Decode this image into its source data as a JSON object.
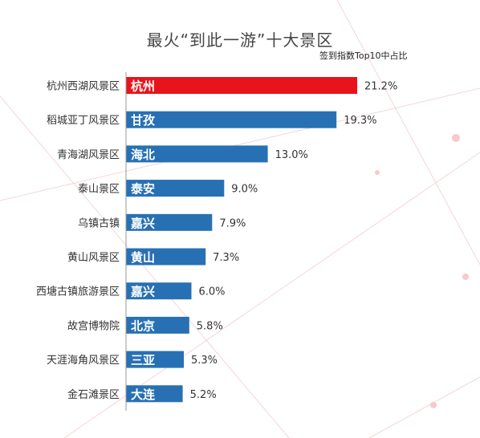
{
  "title": "最火“到此一游”十大景区",
  "subtitle": "签到指数Top10中占比",
  "colors": {
    "highlight": "#e8141b",
    "bar": "#2870b4",
    "axis": "#999999"
  },
  "chart_data": {
    "type": "bar",
    "orientation": "horizontal",
    "title": "最火“到此一游”十大景区",
    "subtitle": "签到指数Top10中占比",
    "categories": [
      "杭州西湖风景区",
      "稻城亚丁风景区",
      "青海湖风景区",
      "泰山景区",
      "乌镇古镇",
      "黄山风景区",
      "西塘古镇旅游景区",
      "故宫博物院",
      "天涯海角风景区",
      "金石滩景区"
    ],
    "bar_labels": [
      "杭州",
      "甘孜",
      "海北",
      "泰安",
      "嘉兴",
      "黄山",
      "嘉兴",
      "北京",
      "三亚",
      "大连"
    ],
    "values": [
      21.2,
      19.3,
      13.0,
      9.0,
      7.9,
      7.3,
      6.0,
      5.8,
      5.3,
      5.2
    ],
    "value_labels": [
      "21.2%",
      "19.3%",
      "13.0%",
      "9.0%",
      "7.9%",
      "7.3%",
      "6.0%",
      "5.8%",
      "5.3%",
      "5.2%"
    ],
    "unit": "%",
    "xlim": [
      0,
      21.2
    ],
    "highlight_index": 0
  }
}
